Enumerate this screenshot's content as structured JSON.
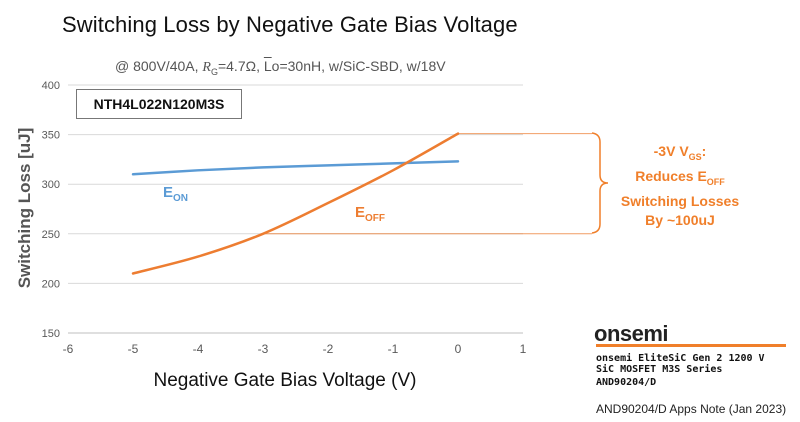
{
  "title": "Switching Loss by Negative Gate Bias Voltage",
  "subtitle_parts": {
    "p1": "@ 800V/40A, ",
    "rg": "R",
    "rg_sub": "G",
    "p2": "=4.7Ω, ",
    "lo": "L",
    "p3": "o=30nH, w/SiC-SBD, w/18V"
  },
  "device_label": "NTH4L022N120M3S",
  "annotation": {
    "l1a": "-3V V",
    "l1sub": "GS",
    "l1b": ":",
    "l2a": "Reduces E",
    "l2sub": "OFF",
    "l3": "Switching Losses",
    "l4": "By ~100uJ"
  },
  "logo": "onsemi",
  "series_title_l1": "onsemi EliteSiC Gen 2 1200 V",
  "series_title_l2": "SiC MOSFET M3S Series",
  "doc_id": "AND90204/D",
  "apps_note": "AND90204/D Apps Note (Jan 2023)",
  "colors": {
    "eon": "#5b9bd5",
    "eoff": "#ed7d31",
    "accent": "#f07f2a",
    "grid": "#d9d9d9"
  },
  "chart_data": {
    "type": "line",
    "title": "Switching Loss by Negative Gate Bias Voltage",
    "xlabel": "Negative Gate Bias Voltage (V)",
    "ylabel": "Switching Loss [uJ]",
    "xlim": [
      -6,
      1
    ],
    "ylim": [
      150,
      400
    ],
    "xticks": [
      -6,
      -5,
      -4,
      -3,
      -2,
      -1,
      0,
      1
    ],
    "yticks": [
      150,
      200,
      250,
      300,
      350,
      400
    ],
    "grid": true,
    "series": [
      {
        "name": "E",
        "label_sub": "ON",
        "color": "#5b9bd5",
        "x": [
          -5,
          -4,
          -3,
          -2,
          -1,
          0
        ],
        "y": [
          310,
          314,
          317,
          319,
          321,
          323
        ]
      },
      {
        "name": "E",
        "label_sub": "OFF",
        "color": "#ed7d31",
        "x": [
          -5,
          -4,
          -3,
          -2,
          -1,
          0
        ],
        "y": [
          210,
          227,
          250,
          281,
          314,
          351
        ]
      }
    ],
    "reference_lines": [
      {
        "y": 351,
        "color": "#ed7d31"
      },
      {
        "y": 250,
        "color": "#ed7d31"
      }
    ]
  }
}
